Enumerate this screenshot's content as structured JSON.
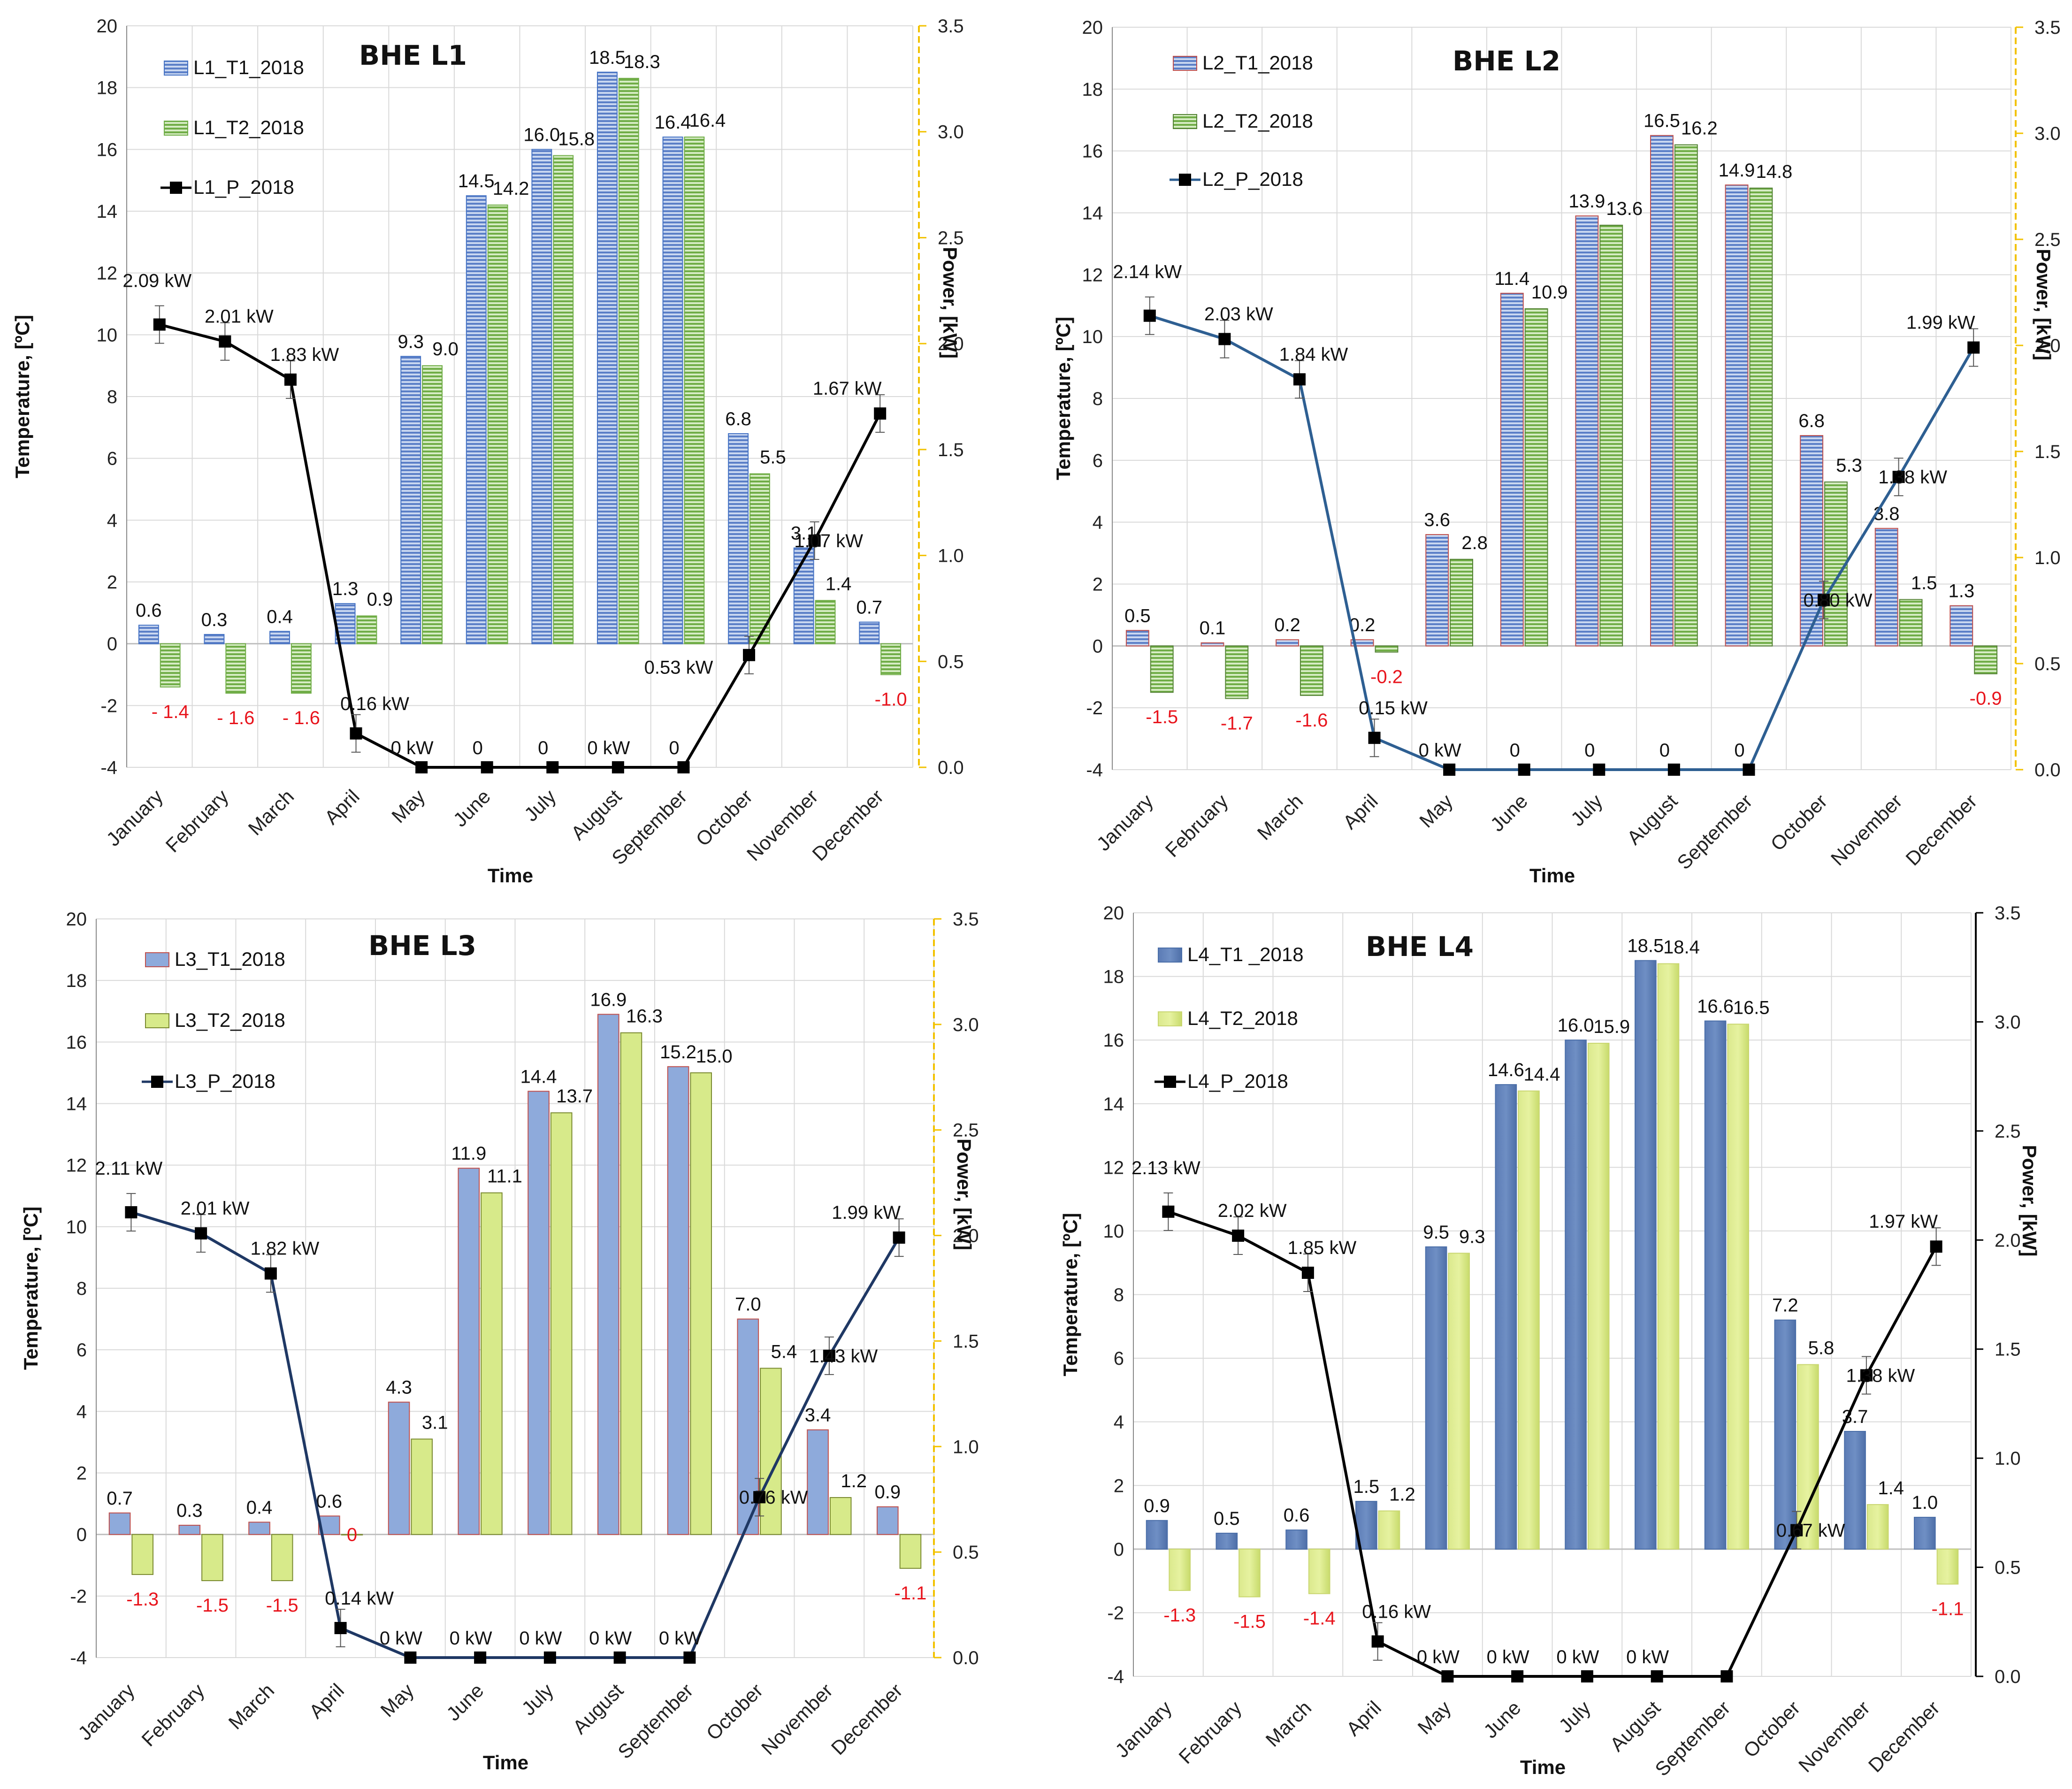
{
  "months": [
    "January",
    "February",
    "March",
    "April",
    "May",
    "June",
    "July",
    "August",
    "September",
    "October",
    "November",
    "December"
  ],
  "chart_data": [
    {
      "type": "bar+line",
      "title": "BHE L1",
      "xlabel": "Time",
      "ylabel": "Temperature, [ºC]",
      "y2label": "Power, [kW]",
      "ylim": [
        -4,
        20
      ],
      "y2lim": [
        0.0,
        3.5
      ],
      "yticks": [
        "-4",
        "-2",
        "0",
        "2",
        "4",
        "6",
        "8",
        "10",
        "12",
        "14",
        "16",
        "18",
        "20"
      ],
      "y2ticks": [
        "0.0",
        "0.5",
        "1.0",
        "1.5",
        "2.0",
        "2.5",
        "3.0",
        "3.5"
      ],
      "legend": [
        "L1_T1_2018",
        "L1_T2_2018",
        "L1_P_2018"
      ],
      "style": "l1",
      "series": [
        {
          "name": "L1_T1_2018",
          "values": [
            0.6,
            0.3,
            0.4,
            1.3,
            9.3,
            14.5,
            16.0,
            18.5,
            16.4,
            6.8,
            3.1,
            0.7
          ],
          "labels": [
            "0.6",
            "0.3",
            "0.4",
            "1.3",
            "9.3",
            "14.5",
            "16.0",
            "18.5",
            "16.4",
            "6.8",
            "3.1",
            "0.7"
          ]
        },
        {
          "name": "L1_T2_2018",
          "values": [
            -1.4,
            -1.6,
            -1.6,
            0.9,
            9.0,
            14.2,
            15.8,
            18.3,
            16.4,
            5.5,
            1.4,
            -1.0
          ],
          "labels": [
            "- 1.4",
            "- 1.6",
            "- 1.6",
            "0.9",
            "9.0",
            "14.2",
            "15.8",
            "18.3",
            "16.4",
            "5.5",
            "1.4",
            "-1.0"
          ]
        },
        {
          "name": "L1_P_2018",
          "values": [
            2.09,
            2.01,
            1.83,
            0.16,
            0,
            0,
            0,
            0,
            0,
            0.53,
            1.07,
            1.67
          ],
          "labels": [
            "2.09 kW",
            "2.01 kW",
            "1.83 kW",
            "0.16 kW",
            "0 kW",
            "0",
            "0",
            "0 kW",
            "0",
            "0.53 kW",
            "1.07 kW",
            "1.67 kW"
          ]
        }
      ]
    },
    {
      "type": "bar+line",
      "title": "BHE L2",
      "xlabel": "Time",
      "ylabel": "Temperature, [ºC]",
      "y2label": "Power, [kW]",
      "ylim": [
        -4,
        20
      ],
      "y2lim": [
        0.0,
        3.5
      ],
      "yticks": [
        "-4",
        "-2",
        "0",
        "2",
        "4",
        "6",
        "8",
        "10",
        "12",
        "14",
        "16",
        "18",
        "20"
      ],
      "y2ticks": [
        "0.0",
        "0.5",
        "1.0",
        "1.5",
        "2.0",
        "2.5",
        "3.0",
        "3.5"
      ],
      "legend": [
        "L2_T1_2018",
        "L2_T2_2018",
        "L2_P_2018"
      ],
      "style": "l2",
      "series": [
        {
          "name": "L2_T1_2018",
          "values": [
            0.5,
            0.1,
            0.2,
            0.2,
            3.6,
            11.4,
            13.9,
            16.5,
            14.9,
            6.8,
            3.8,
            1.3
          ],
          "labels": [
            "0.5",
            "0.1",
            "0.2",
            "0.2",
            "3.6",
            "11.4",
            "13.9",
            "16.5",
            "14.9",
            "6.8",
            "3.8",
            "1.3"
          ]
        },
        {
          "name": "L2_T2_2018",
          "values": [
            -1.5,
            -1.7,
            -1.6,
            -0.2,
            2.8,
            10.9,
            13.6,
            16.2,
            14.8,
            5.3,
            1.5,
            -0.9
          ],
          "labels": [
            "-1.5",
            "-1.7",
            "-1.6",
            "-0.2",
            "2.8",
            "10.9",
            "13.6",
            "16.2",
            "14.8",
            "5.3",
            "1.5",
            "-0.9"
          ]
        },
        {
          "name": "L2_P_2018",
          "values": [
            2.14,
            2.03,
            1.84,
            0.15,
            0,
            0,
            0,
            0,
            0,
            0.8,
            1.38,
            1.99
          ],
          "labels": [
            "2.14 kW",
            "2.03 kW",
            "1.84 kW",
            "0.15 kW",
            "0 kW",
            "0",
            "0",
            "0",
            "0",
            "0.80 kW",
            "1.38 kW",
            "1.99 kW"
          ]
        }
      ]
    },
    {
      "type": "bar+line",
      "title": "BHE L3",
      "xlabel": "Time",
      "ylabel": "Temperature, [ºC]",
      "y2label": "Power, [kW]",
      "ylim": [
        -4,
        20
      ],
      "y2lim": [
        0.0,
        3.5
      ],
      "yticks": [
        "-4",
        "-2",
        "0",
        "2",
        "4",
        "6",
        "8",
        "10",
        "12",
        "14",
        "16",
        "18",
        "20"
      ],
      "y2ticks": [
        "0.0",
        "0.5",
        "1.0",
        "1.5",
        "2.0",
        "2.5",
        "3.0",
        "3.5"
      ],
      "legend": [
        "L3_T1_2018",
        "L3_T2_2018",
        "L3_P_2018"
      ],
      "style": "l3",
      "series": [
        {
          "name": "L3_T1_2018",
          "values": [
            0.7,
            0.3,
            0.4,
            0.6,
            4.3,
            11.9,
            14.4,
            16.9,
            15.2,
            7.0,
            3.4,
            0.9
          ],
          "labels": [
            "0.7",
            "0.3",
            "0.4",
            "0.6",
            "4.3",
            "11.9",
            "14.4",
            "16.9",
            "15.2",
            "7.0",
            "3.4",
            "0.9"
          ]
        },
        {
          "name": "L3_T2_2018",
          "values": [
            -1.3,
            -1.5,
            -1.5,
            0,
            3.1,
            11.1,
            13.7,
            16.3,
            15.0,
            5.4,
            1.2,
            -1.1
          ],
          "labels": [
            "-1.3",
            "-1.5",
            "-1.5",
            "0",
            "3.1",
            "11.1",
            "13.7",
            "16.3",
            "15.0",
            "5.4",
            "1.2",
            "-1.1"
          ]
        },
        {
          "name": "L3_P_2018",
          "values": [
            2.11,
            2.01,
            1.82,
            0.14,
            0,
            0,
            0,
            0,
            0,
            0.76,
            1.43,
            1.99
          ],
          "labels": [
            "2.11 kW",
            "2.01 kW",
            "1.82 kW",
            "0.14 kW",
            "0 kW",
            "0 kW",
            "0 kW",
            "0 kW",
            "0 kW",
            "0.76 kW",
            "1.43 kW",
            "1.99 kW"
          ]
        }
      ]
    },
    {
      "type": "bar+line",
      "title": "BHE L4",
      "xlabel": "Time",
      "ylabel": "Temperature, [ºC]",
      "y2label": "Power, [kW]",
      "ylim": [
        -4,
        20
      ],
      "y2lim": [
        0.0,
        3.5
      ],
      "yticks": [
        "-4",
        "-2",
        "0",
        "2",
        "4",
        "6",
        "8",
        "10",
        "12",
        "14",
        "16",
        "18",
        "20"
      ],
      "y2ticks": [
        "0.0",
        "0.5",
        "1.0",
        "1.5",
        "2.0",
        "2.5",
        "3.0",
        "3.5"
      ],
      "legend": [
        "L4_T1 _2018",
        "L4_T2_2018",
        "L4_P_2018"
      ],
      "style": "l4",
      "series": [
        {
          "name": "L4_T1_2018",
          "values": [
            0.9,
            0.5,
            0.6,
            1.5,
            9.5,
            14.6,
            16.0,
            18.5,
            16.6,
            7.2,
            3.7,
            1.0
          ],
          "labels": [
            "0.9",
            "0.5",
            "0.6",
            "1.5",
            "9.5",
            "14.6",
            "16.0",
            "18.5",
            "16.6",
            "7.2",
            "3.7",
            "1.0"
          ]
        },
        {
          "name": "L4_T2_2018",
          "values": [
            -1.3,
            -1.5,
            -1.4,
            1.2,
            9.3,
            14.4,
            15.9,
            18.4,
            16.5,
            5.8,
            1.4,
            -1.1
          ],
          "labels": [
            "-1.3",
            "-1.5",
            "-1.4",
            "1.2",
            "9.3",
            "14.4",
            "15.9",
            "18.4",
            "16.5",
            "5.8",
            "1.4",
            "-1.1"
          ]
        },
        {
          "name": "L4_P_2018",
          "values": [
            2.13,
            2.02,
            1.85,
            0.16,
            0,
            0,
            0,
            0,
            0,
            0.67,
            1.38,
            1.97
          ],
          "labels": [
            "2.13 kW",
            "2.02 kW",
            "1.85 kW",
            "0.16 kW",
            "0 kW",
            "0 kW",
            "0 kW",
            "0 kW",
            "",
            "0.67 kW",
            "1.38 kW",
            "1.97 kW"
          ]
        }
      ]
    }
  ],
  "colors": {
    "t1_blue": "#8eaadb",
    "t1_stroke_l1": "#4472c4",
    "t1_stroke_red": "#c0504d",
    "t2_green": "#a9d18e",
    "t2_stroke": "#70ad47",
    "t2_yellowgreen": "#d7ea8a",
    "l4_t1": "#6f8fc4",
    "l4_t2": "#e6f2a0",
    "line_black": "#000000",
    "line_blue": "#2e5f92",
    "line_navy": "#1f3864",
    "y2_axis": "#f2c200",
    "neg_label": "#e8141c",
    "grid": "#d9d9d9"
  }
}
